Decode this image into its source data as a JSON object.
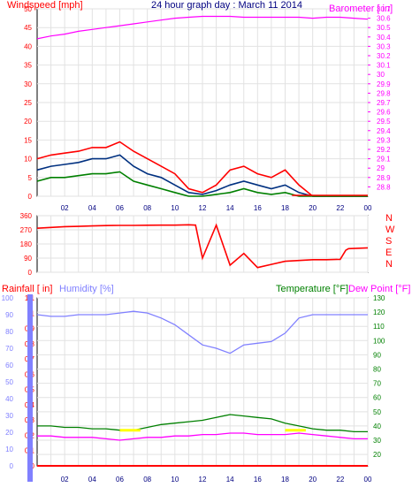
{
  "title": "24 hour graph day : March 11 2014",
  "colors": {
    "background": "#ffffff",
    "plot_bg": "#ffffff",
    "grid": "#e2e2e2",
    "border": "#000000",
    "wind": "#ff0000",
    "gust_avg": "#003080",
    "wind_min": "#008000",
    "barometer": "#ff00ff",
    "direction": "#ff0000",
    "rain": "#ff0000",
    "humidity": "#8080ff",
    "temperature": "#008000",
    "dewpoint": "#ff00ff",
    "hour_text": "#000080",
    "yellow": "#ffff00"
  },
  "hour_labels": [
    "02",
    "04",
    "06",
    "08",
    "10",
    "12",
    "14",
    "16",
    "18",
    "20",
    "22",
    "00"
  ],
  "chart_data": [
    {
      "type": "line",
      "name": "wind-barometer",
      "left_label": "Windspeed [mph]",
      "right_label": "Barometer [ in]",
      "left_ticks": [
        "0",
        "5",
        "10",
        "15",
        "20",
        "25",
        "30",
        "35",
        "40",
        "45",
        "50"
      ],
      "right_ticks": [
        "28.8",
        "28.9",
        "29",
        "29.1",
        "29.2",
        "29.3",
        "29.4",
        "29.5",
        "29.6",
        "29.7",
        "29.8",
        "29.9",
        "30",
        "30.1",
        "30.2",
        "30.3",
        "30.4",
        "30.5",
        "30.6",
        "30.7"
      ],
      "ylim_left": [
        0,
        50
      ],
      "ylim_right": [
        28.7,
        30.7
      ],
      "series": [
        {
          "key": "gust",
          "axis": "left",
          "x": [
            0,
            1,
            2,
            3,
            4,
            5,
            6,
            7,
            8,
            9,
            10,
            11,
            12,
            13,
            14,
            15,
            16,
            17,
            18,
            19,
            20,
            21,
            22,
            23,
            24
          ],
          "y": [
            10,
            11,
            11.5,
            12,
            13,
            13,
            14.5,
            12,
            10,
            8,
            6,
            2,
            1,
            3,
            7,
            8,
            6,
            5,
            7,
            3,
            0,
            0,
            0,
            0,
            0
          ]
        },
        {
          "key": "avg",
          "axis": "left",
          "x": [
            0,
            1,
            2,
            3,
            4,
            5,
            6,
            7,
            8,
            9,
            10,
            11,
            12,
            13,
            14,
            15,
            16,
            17,
            18,
            19,
            20,
            21,
            22,
            23,
            24
          ],
          "y": [
            7,
            8,
            8.5,
            9,
            10,
            10,
            11,
            8,
            6,
            5,
            3,
            1,
            0.5,
            1.5,
            3,
            4,
            3,
            2,
            3,
            1,
            0,
            0,
            0,
            0,
            0
          ]
        },
        {
          "key": "wmin",
          "axis": "left",
          "x": [
            0,
            1,
            2,
            3,
            4,
            5,
            6,
            7,
            8,
            9,
            10,
            11,
            12,
            13,
            14,
            15,
            16,
            17,
            18,
            19,
            20,
            21,
            22,
            23,
            24
          ],
          "y": [
            4,
            5,
            5,
            5.5,
            6,
            6,
            6.5,
            4,
            3,
            2,
            1,
            0,
            0,
            0.5,
            1,
            2,
            1,
            0.5,
            1,
            0,
            0,
            0,
            0,
            0,
            0
          ]
        },
        {
          "key": "baro",
          "axis": "right",
          "x": [
            0,
            1,
            2,
            3,
            4,
            5,
            6,
            7,
            8,
            9,
            10,
            11,
            12,
            13,
            14,
            15,
            16,
            17,
            18,
            19,
            20,
            21,
            22,
            23,
            24
          ],
          "y": [
            30.38,
            30.41,
            30.43,
            30.46,
            30.48,
            30.5,
            30.52,
            30.54,
            30.56,
            30.58,
            30.6,
            30.61,
            30.62,
            30.62,
            30.62,
            30.61,
            30.61,
            30.61,
            30.61,
            30.61,
            30.6,
            30.61,
            30.61,
            30.6,
            30.59
          ]
        }
      ]
    },
    {
      "type": "line",
      "name": "wind-direction",
      "left_ticks": [
        "0",
        "90",
        "180",
        "270",
        "360"
      ],
      "right_letters": [
        "N",
        "W",
        "S",
        "E",
        "N"
      ],
      "ylim": [
        0,
        360
      ],
      "series": [
        {
          "key": "dir",
          "x": [
            0,
            1,
            2,
            3,
            4,
            5,
            6,
            7,
            8,
            9,
            10,
            11,
            11.5,
            12,
            13,
            14,
            15,
            16,
            17,
            18,
            19,
            20,
            21,
            22,
            22.4,
            22.6,
            24
          ],
          "y": [
            280,
            285,
            290,
            292,
            295,
            297,
            298,
            298,
            299,
            300,
            300,
            302,
            300,
            90,
            300,
            45,
            120,
            30,
            50,
            70,
            75,
            80,
            80,
            82,
            140,
            150,
            155
          ]
        }
      ]
    },
    {
      "type": "line",
      "name": "rain-humidity-temperature",
      "left_label_rain": "Rainfall [ in]",
      "left_label_hum": "Humidity [%]",
      "right_label_temp": "Temperature [°F]",
      "right_label_dew": "Dew Point [°F]",
      "hum_ticks": [
        "0",
        "10",
        "20",
        "30",
        "40",
        "50",
        "60",
        "70",
        "80",
        "90",
        "100"
      ],
      "rain_ticks": [
        "0",
        "0.1",
        "0.2",
        "0.3",
        "0.4",
        "0.5",
        "0.6",
        "0.7",
        "0.8",
        "0.9",
        "1",
        "1.1"
      ],
      "temp_ticks": [
        "20",
        "30",
        "40",
        "50",
        "60",
        "70",
        "80",
        "90",
        "100",
        "110",
        "120",
        "130"
      ],
      "ylim_hum": [
        0,
        100
      ],
      "ylim_rain": [
        0,
        1.1
      ],
      "ylim_temp": [
        12,
        130
      ],
      "series": [
        {
          "key": "hum",
          "axis": "hum",
          "x": [
            0,
            1,
            2,
            3,
            4,
            5,
            6,
            7,
            8,
            9,
            10,
            11,
            12,
            13,
            14,
            15,
            16,
            17,
            18,
            19,
            20,
            21,
            22,
            23,
            24
          ],
          "y": [
            90,
            89,
            89,
            90,
            90,
            90,
            91,
            92,
            91,
            88,
            84,
            78,
            72,
            70,
            67,
            72,
            73,
            74,
            79,
            88,
            90,
            90,
            90,
            90,
            90
          ]
        },
        {
          "key": "temp",
          "axis": "temp",
          "x": [
            0,
            1,
            2,
            3,
            4,
            5,
            6,
            7,
            8,
            9,
            10,
            11,
            12,
            13,
            14,
            15,
            16,
            17,
            18,
            19,
            20,
            21,
            22,
            23,
            24
          ],
          "y": [
            40,
            40,
            39,
            39,
            38,
            38,
            37,
            37,
            39,
            41,
            42,
            43,
            44,
            46,
            48,
            47,
            46,
            45,
            42,
            40,
            38,
            37,
            37,
            36,
            36
          ]
        },
        {
          "key": "dew",
          "axis": "temp",
          "x": [
            0,
            1,
            2,
            3,
            4,
            5,
            6,
            7,
            8,
            9,
            10,
            11,
            12,
            13,
            14,
            15,
            16,
            17,
            18,
            19,
            20,
            21,
            22,
            23,
            24
          ],
          "y": [
            33,
            33,
            32,
            32,
            32,
            31,
            30,
            31,
            32,
            32,
            33,
            33,
            34,
            34,
            35,
            35,
            34,
            34,
            34,
            35,
            34,
            33,
            32,
            31,
            31
          ]
        },
        {
          "key": "rain",
          "axis": "rain",
          "x": [
            0,
            24
          ],
          "y": [
            0,
            0
          ]
        }
      ]
    }
  ]
}
